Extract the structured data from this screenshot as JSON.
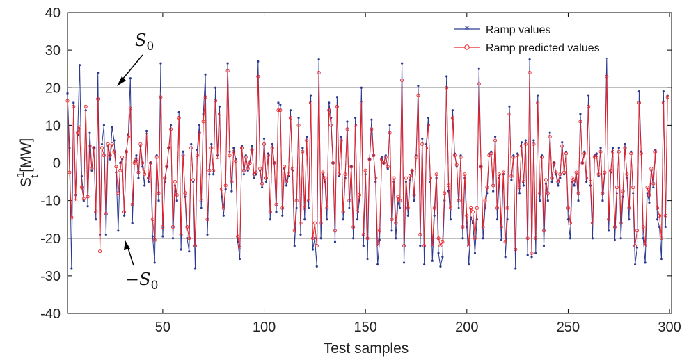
{
  "chart_data": {
    "type": "line",
    "xlabel": "Test samples",
    "ylabel": "S",
    "ylabel_sup": "1",
    "ylabel_sub": "t",
    "ylabel_unit": "[MW]",
    "xlim": [
      3,
      301
    ],
    "ylim": [
      -40,
      40
    ],
    "xticks": [
      50,
      100,
      150,
      200,
      250,
      300
    ],
    "yticks": [
      40,
      30,
      20,
      10,
      0,
      -10,
      -20,
      -30,
      -40
    ],
    "grid": false,
    "legend_position": "top-right",
    "thresholds": [
      20,
      -20
    ],
    "annotations": [
      {
        "label": "S",
        "sub": "0",
        "target_y": 20
      },
      {
        "label": "−S",
        "sub": "0",
        "target_y": -20
      }
    ],
    "series": [
      {
        "name": "Ramp values",
        "color": "#2b3990",
        "marker": "star",
        "values": [
          18.5,
          4.0,
          -28.0,
          16.0,
          -8.5,
          7.5,
          26.0,
          -3.5,
          -10.0,
          14.0,
          -11.5,
          8.0,
          -2.0,
          4.0,
          -15.0,
          24.0,
          -19.0,
          5.0,
          10.0,
          -19.0,
          4.5,
          1.0,
          9.5,
          6.0,
          -2.5,
          -18.0,
          0.0,
          1.0,
          -14.0,
          3.0,
          7.5,
          22.5,
          -16.0,
          0.5,
          2.0,
          -4.0,
          4.5,
          -1.0,
          -6.0,
          8.5,
          -5.0,
          0.0,
          -19.5,
          -26.5,
          2.0,
          -10.0,
          26.5,
          -19.5,
          -5.0,
          -1.0,
          4.0,
          10.0,
          -20.0,
          -6.0,
          -10.0,
          13.5,
          -23.0,
          3.0,
          -9.0,
          -20.0,
          -23.5,
          5.0,
          -5.0,
          -28.0,
          3.5,
          10.0,
          -12.0,
          13.0,
          23.5,
          -19.0,
          -3.0,
          5.0,
          -3.0,
          20.0,
          2.0,
          15.0,
          -9.0,
          -14.0,
          -7.0,
          26.5,
          3.0,
          -7.5,
          4.0,
          1.0,
          -21.0,
          -25.5,
          4.5,
          -3.0,
          2.0,
          -2.0,
          0.5,
          4.5,
          -4.0,
          -3.0,
          27.0,
          -2.0,
          -6.5,
          6.5,
          -5.0,
          2.5,
          -15.0,
          5.0,
          0.0,
          -13.0,
          16.0,
          15.5,
          -14.0,
          -1.5,
          -6.0,
          -3.5,
          14.0,
          -2.0,
          -22.0,
          -12.0,
          12.0,
          -19.0,
          4.0,
          -15.0,
          7.0,
          -12.0,
          18.0,
          -23.0,
          -20.0,
          -27.5,
          27.5,
          -20.0,
          -3.0,
          -5.0,
          -15.0,
          16.0,
          12.0,
          0.0,
          -21.0,
          17.5,
          -3.5,
          7.0,
          -15.0,
          -4.0,
          11.0,
          -12.0,
          -1.0,
          -20.0,
          12.0,
          -15.0,
          -10.0,
          20.0,
          -22.0,
          -3.0,
          -25.5,
          1.0,
          11.5,
          2.0,
          -5.0,
          -27.0,
          -20.5,
          1.5,
          0.0,
          2.0,
          -1.5,
          10.0,
          -18.0,
          -5.0,
          -20.0,
          -10.5,
          -12.0,
          26.5,
          -26.5,
          -5.0,
          -14.0,
          -4.5,
          -2.0,
          -10.0,
          2.0,
          20.5,
          -22.0,
          6.5,
          -27.0,
          5.0,
          12.0,
          -5.0,
          -26.0,
          -14.0,
          -4.0,
          -24.0,
          -27.5,
          -25.0,
          -10.0,
          23.0,
          -7.5,
          -15.0,
          14.0,
          2.5,
          -1.0,
          -12.0,
          2.0,
          -20.0,
          -4.0,
          -17.0,
          -27.0,
          -14.5,
          -16.0,
          -24.0,
          -15.0,
          25.0,
          -1.0,
          -20.0,
          -12.0,
          -8.0,
          2.5,
          3.0,
          -7.5,
          7.0,
          -15.0,
          -4.0,
          -20.5,
          -3.0,
          -25.0,
          -15.0,
          15.0,
          -4.5,
          2.0,
          -28.0,
          2.5,
          -8.0,
          5.5,
          -6.0,
          6.0,
          -24.5,
          27.5,
          -25.0,
          6.0,
          -24.0,
          18.0,
          -10.0,
          2.0,
          -22.0,
          -5.5,
          -10.0,
          8.0,
          -5.0,
          0.0,
          -3.0,
          -6.0,
          -4.0,
          5.5,
          -3.0,
          3.0,
          -15.0,
          -20.0,
          -5.0,
          -6.0,
          -3.0,
          -10.0,
          13.0,
          0.0,
          3.0,
          -5.0,
          18.0,
          -6.0,
          -20.0,
          2.0,
          2.5,
          -3.5,
          4.0,
          -10.0,
          -3.0,
          28.0,
          -18.0,
          -2.5,
          4.0,
          -20.5,
          -8.0,
          4.0,
          -20.0,
          -9.0,
          5.0,
          -4.0,
          -15.0,
          3.0,
          -8.0,
          -27.0,
          -22.5,
          19.0,
          3.0,
          -20.0,
          -26.5,
          -8.0,
          -10.5,
          -2.0,
          -6.5,
          3.5,
          -15.0,
          -17.0,
          -25.5,
          19.0,
          -17.0,
          18.0
        ]
      },
      {
        "name": "Ramp predicted values",
        "color": "#e8242a",
        "marker": "circle",
        "values": [
          16.5,
          -2.5,
          -14.5,
          15.0,
          -10.0,
          8.0,
          9.5,
          -6.5,
          -9.5,
          15.0,
          -9.0,
          4.5,
          -1.5,
          4.0,
          -13.0,
          17.0,
          -23.5,
          4.0,
          2.0,
          -13.5,
          5.0,
          2.0,
          5.0,
          3.0,
          -1.0,
          -8.0,
          -2.0,
          1.5,
          -13.0,
          3.0,
          7.0,
          14.5,
          -11.0,
          0.0,
          1.0,
          -2.5,
          5.0,
          0.0,
          -3.0,
          7.5,
          -4.0,
          0.0,
          -15.0,
          -20.5,
          1.5,
          -8.0,
          17.5,
          -17.0,
          -4.0,
          -1.0,
          4.0,
          9.0,
          -17.0,
          -5.0,
          -8.5,
          12.0,
          -19.0,
          2.0,
          -8.0,
          -17.0,
          -20.0,
          4.0,
          -4.5,
          -22.0,
          2.0,
          8.0,
          -10.0,
          11.0,
          17.5,
          -15.0,
          -2.0,
          4.0,
          -2.0,
          16.5,
          1.5,
          13.0,
          -7.0,
          -12.0,
          -6.0,
          24.5,
          2.0,
          -5.0,
          3.0,
          0.5,
          -19.5,
          -22.5,
          4.0,
          -2.0,
          1.5,
          -1.5,
          0.0,
          3.5,
          -3.0,
          -2.5,
          23.0,
          -1.5,
          -5.5,
          5.0,
          -4.0,
          2.0,
          -13.0,
          4.0,
          0.0,
          -11.0,
          14.0,
          14.0,
          -12.0,
          -1.0,
          -5.0,
          -3.0,
          12.0,
          -1.5,
          -18.0,
          -10.0,
          10.0,
          -16.0,
          3.0,
          -12.0,
          6.0,
          -10.0,
          16.0,
          -20.0,
          -16.0,
          -22.0,
          24.0,
          -16.0,
          -2.5,
          -4.0,
          -12.0,
          14.0,
          10.0,
          0.0,
          -18.0,
          15.0,
          -3.0,
          6.0,
          -13.0,
          -3.0,
          9.0,
          -10.0,
          -1.0,
          -17.0,
          10.0,
          -13.0,
          -8.5,
          16.0,
          -19.0,
          -2.0,
          -20.0,
          1.0,
          9.0,
          2.0,
          -4.0,
          -22.0,
          -18.0,
          1.0,
          0.0,
          1.5,
          -1.0,
          8.0,
          -15.0,
          -4.0,
          -16.0,
          -9.0,
          -10.0,
          22.0,
          -22.0,
          -4.0,
          -12.0,
          -3.5,
          -2.0,
          -8.5,
          1.5,
          18.0,
          -19.0,
          5.0,
          -22.0,
          4.0,
          10.0,
          -4.0,
          -22.0,
          -12.0,
          -3.0,
          -20.0,
          -22.0,
          -21.0,
          -8.0,
          20.0,
          -6.0,
          -12.0,
          12.0,
          2.0,
          -0.5,
          -10.0,
          1.5,
          -17.0,
          -3.0,
          -14.0,
          -22.0,
          -12.0,
          -13.0,
          -20.0,
          -12.0,
          21.0,
          -1.0,
          -17.0,
          -10.0,
          -6.5,
          2.0,
          2.5,
          -6.0,
          6.0,
          -12.0,
          -3.0,
          -17.0,
          -2.5,
          -21.0,
          -12.0,
          13.0,
          -3.5,
          1.5,
          -23.0,
          2.0,
          -6.5,
          4.5,
          -5.0,
          5.0,
          -20.0,
          24.0,
          -24.0,
          5.0,
          -20.0,
          16.0,
          -8.0,
          1.5,
          -18.0,
          -4.5,
          -8.0,
          7.0,
          -4.0,
          0.0,
          -2.5,
          -5.0,
          -3.0,
          4.5,
          -2.5,
          2.5,
          -12.0,
          -16.0,
          -4.0,
          -5.0,
          -2.5,
          -8.0,
          11.0,
          0.0,
          2.5,
          -4.0,
          15.0,
          -5.0,
          -16.0,
          1.5,
          2.0,
          -3.0,
          3.0,
          -8.0,
          -2.5,
          23.0,
          -15.0,
          -2.0,
          3.0,
          -17.0,
          -6.5,
          3.0,
          -16.0,
          -7.5,
          4.0,
          -3.0,
          -12.0,
          2.5,
          -6.5,
          -22.0,
          -18.0,
          16.0,
          2.5,
          -17.0,
          -22.0,
          -6.5,
          -8.5,
          -1.5,
          -5.5,
          3.0,
          -12.0,
          -14.0,
          -20.0,
          16.0,
          -14.0,
          17.5
        ]
      }
    ]
  }
}
